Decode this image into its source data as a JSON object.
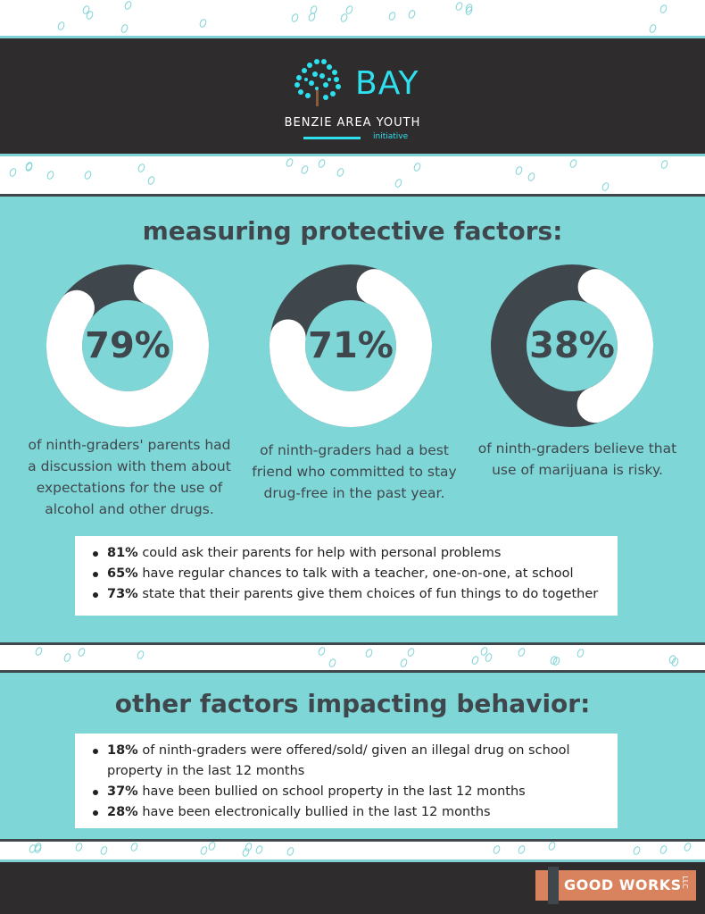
{
  "header": {
    "logo_word": "BAY",
    "logo_subtitle": "BENZIE AREA YOUTH",
    "logo_initiative": "initiative"
  },
  "section1": {
    "title": "measuring protective factors:",
    "stats": [
      {
        "value": 79,
        "label": "79%",
        "caption_lines": [
          "of ninth-graders' parents had",
          "a discussion with them about",
          "expectations for the use of",
          "alcohol and other drugs."
        ]
      },
      {
        "value": 71,
        "label": "71%",
        "caption_lines": [
          "of ninth-graders had a best",
          "friend who committed to stay",
          "drug-free in the past year."
        ]
      },
      {
        "value": 38,
        "label": "38%",
        "caption_lines": [
          "of ninth-graders believe that",
          "use of marijuana is risky."
        ]
      }
    ],
    "bullets": [
      {
        "bold": "81%",
        "text": " could ask their parents for help with personal problems"
      },
      {
        "bold": "65%",
        "text": " have regular chances to talk with a teacher, one-on-one, at school"
      },
      {
        "bold": "73%",
        "text": " state that their parents give them choices of fun things to do together"
      }
    ]
  },
  "section2": {
    "title": "other factors impacting behavior:",
    "bullets": [
      {
        "bold": "18%",
        "text": " of ninth-graders were offered/sold/ given an illegal drug on school property in the last 12 months"
      },
      {
        "bold": "37%",
        "text": " have been bullied on school property in the last 12 months"
      },
      {
        "bold": "28%",
        "text": " have been electronically bullied in the last 12 months"
      }
    ]
  },
  "footer": {
    "brand": "GOOD WORKS",
    "brand_suffix": "LLC"
  },
  "colors": {
    "teal": "#7fd6d7",
    "dark": "#3f474d",
    "header_bg": "#2e2c2d",
    "cyan": "#2ee0ee",
    "orange": "#d9835e"
  },
  "chart_data": {
    "type": "pie",
    "categories": [
      "79%",
      "71%",
      "38%"
    ],
    "values": [
      79,
      71,
      38
    ]
  }
}
